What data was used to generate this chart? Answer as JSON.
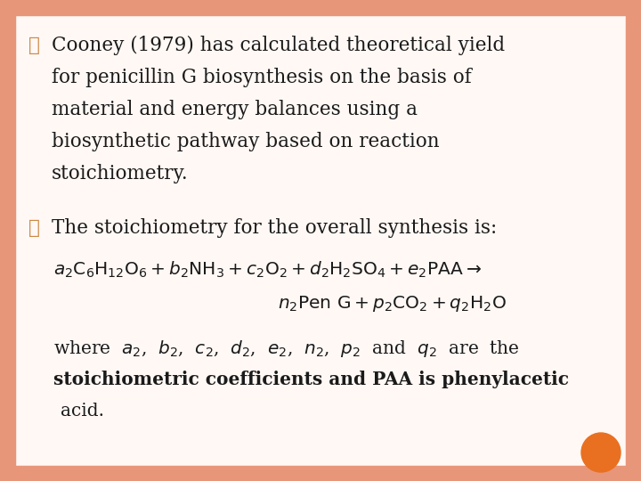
{
  "bg_color": "#fff8f5",
  "border_color": "#e8967a",
  "bullet_color": "#cc8844",
  "bullet_char": "❖",
  "text_color": "#1a1a1a",
  "orange_circle_color": "#e87020",
  "font_size_main": 15.5,
  "font_size_eq": 14.5,
  "font_size_where": 14.5,
  "para1_lines": [
    "Cooney (1979) has calculated theoretical yield",
    "for penicillin G biosynthesis on the basis of",
    "material and energy balances using a",
    "biosynthetic pathway based on reaction",
    "stoichiometry."
  ],
  "para2_line": "The stoichiometry for the overall synthesis is:"
}
